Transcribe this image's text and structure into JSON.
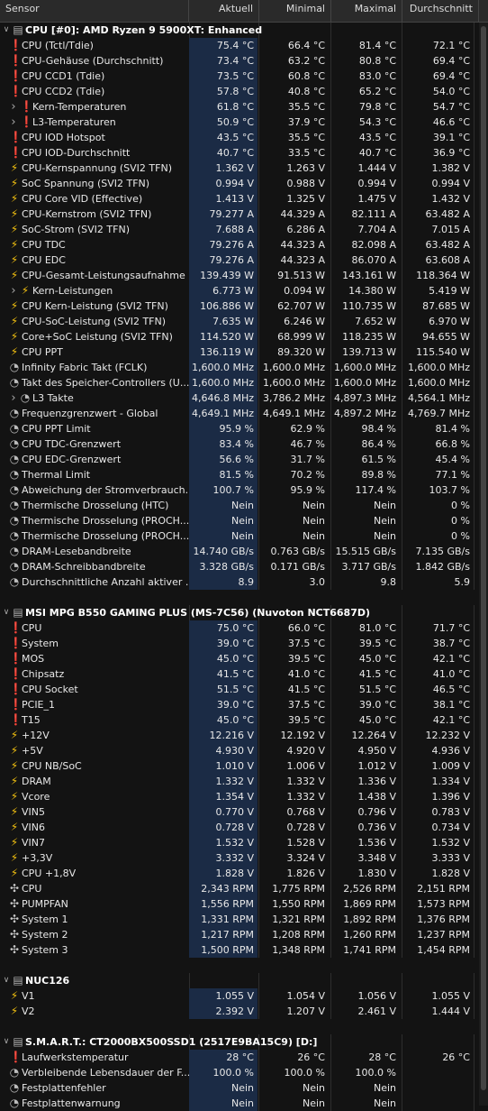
{
  "header": {
    "sensor": "Sensor",
    "current": "Aktuell",
    "min": "Minimal",
    "max": "Maximal",
    "avg": "Durchschnitt"
  },
  "rows": [
    {
      "kind": "group",
      "level": 0,
      "toggle": "collapse",
      "icon": "chip",
      "name": "CPU [#0]: AMD Ryzen 9 5900XT: Enhanced"
    },
    {
      "kind": "sensor",
      "level": 1,
      "icon": "thermometer",
      "name": "CPU (Tctl/Tdie)",
      "v": [
        "75.4 °C",
        "66.4 °C",
        "81.4 °C",
        "72.1 °C"
      ]
    },
    {
      "kind": "sensor",
      "level": 1,
      "icon": "thermometer",
      "name": "CPU-Gehäuse (Durchschnitt)",
      "v": [
        "73.4 °C",
        "63.2 °C",
        "80.8 °C",
        "69.4 °C"
      ]
    },
    {
      "kind": "sensor",
      "level": 1,
      "icon": "thermometer",
      "name": "CPU CCD1 (Tdie)",
      "v": [
        "73.5 °C",
        "60.8 °C",
        "83.0 °C",
        "69.4 °C"
      ]
    },
    {
      "kind": "sensor",
      "level": 1,
      "icon": "thermometer",
      "name": "CPU CCD2 (Tdie)",
      "v": [
        "57.8 °C",
        "40.8 °C",
        "65.2 °C",
        "54.0 °C"
      ]
    },
    {
      "kind": "sensor",
      "level": 1,
      "toggle": "expand",
      "icon": "thermometer",
      "name": "Kern-Temperaturen",
      "v": [
        "61.8 °C",
        "35.5 °C",
        "79.8 °C",
        "54.7 °C"
      ]
    },
    {
      "kind": "sensor",
      "level": 1,
      "toggle": "expand",
      "icon": "thermometer",
      "name": "L3-Temperaturen",
      "v": [
        "50.9 °C",
        "37.9 °C",
        "54.3 °C",
        "46.6 °C"
      ]
    },
    {
      "kind": "sensor",
      "level": 1,
      "icon": "thermometer",
      "name": "CPU IOD Hotspot",
      "v": [
        "43.5 °C",
        "35.5 °C",
        "43.5 °C",
        "39.1 °C"
      ]
    },
    {
      "kind": "sensor",
      "level": 1,
      "icon": "thermometer",
      "name": "CPU IOD-Durchschnitt",
      "v": [
        "40.7 °C",
        "33.5 °C",
        "40.7 °C",
        "36.9 °C"
      ]
    },
    {
      "kind": "sensor",
      "level": 1,
      "icon": "bolt",
      "name": "CPU-Kernspannung (SVI2 TFN)",
      "v": [
        "1.362 V",
        "1.263 V",
        "1.444 V",
        "1.382 V"
      ]
    },
    {
      "kind": "sensor",
      "level": 1,
      "icon": "bolt",
      "name": "SoC Spannung (SVI2 TFN)",
      "v": [
        "0.994 V",
        "0.988 V",
        "0.994 V",
        "0.994 V"
      ]
    },
    {
      "kind": "sensor",
      "level": 1,
      "icon": "bolt",
      "name": "CPU Core VID (Effective)",
      "v": [
        "1.413 V",
        "1.325 V",
        "1.475 V",
        "1.432 V"
      ]
    },
    {
      "kind": "sensor",
      "level": 1,
      "icon": "bolt",
      "name": "CPU-Kernstrom (SVI2 TFN)",
      "v": [
        "79.277 A",
        "44.329 A",
        "82.111 A",
        "63.482 A"
      ]
    },
    {
      "kind": "sensor",
      "level": 1,
      "icon": "bolt",
      "name": "SoC-Strom (SVI2 TFN)",
      "v": [
        "7.688 A",
        "6.286 A",
        "7.704 A",
        "7.015 A"
      ]
    },
    {
      "kind": "sensor",
      "level": 1,
      "icon": "bolt",
      "name": "CPU TDC",
      "v": [
        "79.276 A",
        "44.323 A",
        "82.098 A",
        "63.482 A"
      ]
    },
    {
      "kind": "sensor",
      "level": 1,
      "icon": "bolt",
      "name": "CPU EDC",
      "v": [
        "79.276 A",
        "44.323 A",
        "86.070 A",
        "63.608 A"
      ]
    },
    {
      "kind": "sensor",
      "level": 1,
      "icon": "bolt",
      "name": "CPU-Gesamt-Leistungsaufnahme",
      "v": [
        "139.439 W",
        "91.513 W",
        "143.161 W",
        "118.364 W"
      ]
    },
    {
      "kind": "sensor",
      "level": 1,
      "toggle": "expand",
      "icon": "bolt",
      "name": "Kern-Leistungen",
      "v": [
        "6.773 W",
        "0.094 W",
        "14.380 W",
        "5.419 W"
      ]
    },
    {
      "kind": "sensor",
      "level": 1,
      "icon": "bolt",
      "name": "CPU Kern-Leistung (SVI2 TFN)",
      "v": [
        "106.886 W",
        "62.707 W",
        "110.735 W",
        "87.685 W"
      ]
    },
    {
      "kind": "sensor",
      "level": 1,
      "icon": "bolt",
      "name": "CPU-SoC-Leistung (SVI2 TFN)",
      "v": [
        "7.635 W",
        "6.246 W",
        "7.652 W",
        "6.970 W"
      ]
    },
    {
      "kind": "sensor",
      "level": 1,
      "icon": "bolt",
      "name": "Core+SoC Leistung (SVI2 TFN)",
      "v": [
        "114.520 W",
        "68.999 W",
        "118.235 W",
        "94.655 W"
      ]
    },
    {
      "kind": "sensor",
      "level": 1,
      "icon": "bolt",
      "name": "CPU PPT",
      "v": [
        "136.119 W",
        "89.320 W",
        "139.713 W",
        "115.540 W"
      ]
    },
    {
      "kind": "sensor",
      "level": 1,
      "icon": "clock",
      "name": "Infinity Fabric Takt (FCLK)",
      "v": [
        "1,600.0 MHz",
        "1,600.0 MHz",
        "1,600.0 MHz",
        "1,600.0 MHz"
      ]
    },
    {
      "kind": "sensor",
      "level": 1,
      "icon": "clock",
      "name": "Takt des Speicher-Controllers (U...",
      "v": [
        "1,600.0 MHz",
        "1,600.0 MHz",
        "1,600.0 MHz",
        "1,600.0 MHz"
      ]
    },
    {
      "kind": "sensor",
      "level": 1,
      "toggle": "expand",
      "icon": "clock",
      "name": "L3 Takte",
      "v": [
        "4,646.8 MHz",
        "3,786.2 MHz",
        "4,897.3 MHz",
        "4,564.1 MHz"
      ]
    },
    {
      "kind": "sensor",
      "level": 1,
      "icon": "clock",
      "name": "Frequenzgrenzwert - Global",
      "v": [
        "4,649.1 MHz",
        "4,649.1 MHz",
        "4,897.2 MHz",
        "4,769.7 MHz"
      ]
    },
    {
      "kind": "sensor",
      "level": 1,
      "icon": "clock",
      "name": "CPU PPT Limit",
      "v": [
        "95.9 %",
        "62.9 %",
        "98.4 %",
        "81.4 %"
      ]
    },
    {
      "kind": "sensor",
      "level": 1,
      "icon": "clock",
      "name": "CPU TDC-Grenzwert",
      "v": [
        "83.4 %",
        "46.7 %",
        "86.4 %",
        "66.8 %"
      ]
    },
    {
      "kind": "sensor",
      "level": 1,
      "icon": "clock",
      "name": "CPU EDC-Grenzwert",
      "v": [
        "56.6 %",
        "31.7 %",
        "61.5 %",
        "45.4 %"
      ]
    },
    {
      "kind": "sensor",
      "level": 1,
      "icon": "clock",
      "name": "Thermal Limit",
      "v": [
        "81.5 %",
        "70.2 %",
        "89.8 %",
        "77.1 %"
      ]
    },
    {
      "kind": "sensor",
      "level": 1,
      "icon": "clock",
      "name": "Abweichung der Stromverbrauch...",
      "v": [
        "100.7 %",
        "95.9 %",
        "117.4 %",
        "103.7 %"
      ]
    },
    {
      "kind": "sensor",
      "level": 1,
      "icon": "clock",
      "name": "Thermische Drosselung (HTC)",
      "v": [
        "Nein",
        "Nein",
        "Nein",
        "0 %"
      ]
    },
    {
      "kind": "sensor",
      "level": 1,
      "icon": "clock",
      "name": "Thermische Drosselung (PROCH...",
      "v": [
        "Nein",
        "Nein",
        "Nein",
        "0 %"
      ]
    },
    {
      "kind": "sensor",
      "level": 1,
      "icon": "clock",
      "name": "Thermische Drosselung (PROCH...",
      "v": [
        "Nein",
        "Nein",
        "Nein",
        "0 %"
      ]
    },
    {
      "kind": "sensor",
      "level": 1,
      "icon": "clock",
      "name": "DRAM-Lesebandbreite",
      "v": [
        "14.740 GB/s",
        "0.763 GB/s",
        "15.515 GB/s",
        "7.135 GB/s"
      ]
    },
    {
      "kind": "sensor",
      "level": 1,
      "icon": "clock",
      "name": "DRAM-Schreibbandbreite",
      "v": [
        "3.328 GB/s",
        "0.171 GB/s",
        "3.717 GB/s",
        "1.842 GB/s"
      ]
    },
    {
      "kind": "sensor",
      "level": 1,
      "icon": "clock",
      "name": "Durchschnittliche Anzahl aktiver ...",
      "v": [
        "8.9",
        "3.0",
        "9.8",
        "5.9"
      ]
    },
    {
      "kind": "spacer"
    },
    {
      "kind": "group",
      "level": 0,
      "toggle": "collapse",
      "icon": "chip",
      "name": "MSI MPG B550 GAMING PLUS (MS-7C56) (Nuvoton NCT6687D)"
    },
    {
      "kind": "sensor",
      "level": 1,
      "icon": "thermometer",
      "name": "CPU",
      "v": [
        "75.0 °C",
        "66.0 °C",
        "81.0 °C",
        "71.7 °C"
      ]
    },
    {
      "kind": "sensor",
      "level": 1,
      "icon": "thermometer",
      "name": "System",
      "v": [
        "39.0 °C",
        "37.5 °C",
        "39.5 °C",
        "38.7 °C"
      ]
    },
    {
      "kind": "sensor",
      "level": 1,
      "icon": "thermometer",
      "name": "MOS",
      "v": [
        "45.0 °C",
        "39.5 °C",
        "45.0 °C",
        "42.1 °C"
      ]
    },
    {
      "kind": "sensor",
      "level": 1,
      "icon": "thermometer",
      "name": "Chipsatz",
      "v": [
        "41.5 °C",
        "41.0 °C",
        "41.5 °C",
        "41.0 °C"
      ]
    },
    {
      "kind": "sensor",
      "level": 1,
      "icon": "thermometer",
      "name": "CPU Socket",
      "v": [
        "51.5 °C",
        "41.5 °C",
        "51.5 °C",
        "46.5 °C"
      ]
    },
    {
      "kind": "sensor",
      "level": 1,
      "icon": "thermometer",
      "name": "PCIE_1",
      "v": [
        "39.0 °C",
        "37.5 °C",
        "39.0 °C",
        "38.1 °C"
      ]
    },
    {
      "kind": "sensor",
      "level": 1,
      "icon": "thermometer",
      "name": "T15",
      "v": [
        "45.0 °C",
        "39.5 °C",
        "45.0 °C",
        "42.1 °C"
      ]
    },
    {
      "kind": "sensor",
      "level": 1,
      "icon": "bolt",
      "name": "+12V",
      "v": [
        "12.216 V",
        "12.192 V",
        "12.264 V",
        "12.232 V"
      ]
    },
    {
      "kind": "sensor",
      "level": 1,
      "icon": "bolt",
      "name": "+5V",
      "v": [
        "4.930 V",
        "4.920 V",
        "4.950 V",
        "4.936 V"
      ]
    },
    {
      "kind": "sensor",
      "level": 1,
      "icon": "bolt",
      "name": "CPU NB/SoC",
      "v": [
        "1.010 V",
        "1.006 V",
        "1.012 V",
        "1.009 V"
      ]
    },
    {
      "kind": "sensor",
      "level": 1,
      "icon": "bolt",
      "name": "DRAM",
      "v": [
        "1.332 V",
        "1.332 V",
        "1.336 V",
        "1.334 V"
      ]
    },
    {
      "kind": "sensor",
      "level": 1,
      "icon": "bolt",
      "name": "Vcore",
      "v": [
        "1.354 V",
        "1.332 V",
        "1.438 V",
        "1.396 V"
      ]
    },
    {
      "kind": "sensor",
      "level": 1,
      "icon": "bolt",
      "name": "VIN5",
      "v": [
        "0.770 V",
        "0.768 V",
        "0.796 V",
        "0.783 V"
      ]
    },
    {
      "kind": "sensor",
      "level": 1,
      "icon": "bolt",
      "name": "VIN6",
      "v": [
        "0.728 V",
        "0.728 V",
        "0.736 V",
        "0.734 V"
      ]
    },
    {
      "kind": "sensor",
      "level": 1,
      "icon": "bolt",
      "name": "VIN7",
      "v": [
        "1.532 V",
        "1.528 V",
        "1.536 V",
        "1.532 V"
      ]
    },
    {
      "kind": "sensor",
      "level": 1,
      "icon": "bolt",
      "name": "+3,3V",
      "v": [
        "3.332 V",
        "3.324 V",
        "3.348 V",
        "3.333 V"
      ]
    },
    {
      "kind": "sensor",
      "level": 1,
      "icon": "bolt",
      "name": "CPU +1,8V",
      "v": [
        "1.828 V",
        "1.826 V",
        "1.830 V",
        "1.828 V"
      ]
    },
    {
      "kind": "sensor",
      "level": 1,
      "icon": "fan",
      "name": "CPU",
      "v": [
        "2,343 RPM",
        "1,775 RPM",
        "2,526 RPM",
        "2,151 RPM"
      ]
    },
    {
      "kind": "sensor",
      "level": 1,
      "icon": "fan",
      "name": "PUMPFAN",
      "v": [
        "1,556 RPM",
        "1,550 RPM",
        "1,869 RPM",
        "1,573 RPM"
      ]
    },
    {
      "kind": "sensor",
      "level": 1,
      "icon": "fan",
      "name": "System 1",
      "v": [
        "1,331 RPM",
        "1,321 RPM",
        "1,892 RPM",
        "1,376 RPM"
      ]
    },
    {
      "kind": "sensor",
      "level": 1,
      "icon": "fan",
      "name": "System 2",
      "v": [
        "1,217 RPM",
        "1,208 RPM",
        "1,260 RPM",
        "1,237 RPM"
      ]
    },
    {
      "kind": "sensor",
      "level": 1,
      "icon": "fan",
      "name": "System 3",
      "v": [
        "1,500 RPM",
        "1,348 RPM",
        "1,741 RPM",
        "1,454 RPM"
      ]
    },
    {
      "kind": "spacer"
    },
    {
      "kind": "group",
      "level": 0,
      "toggle": "collapse",
      "icon": "chip",
      "name": "NUC126"
    },
    {
      "kind": "sensor",
      "level": 1,
      "icon": "bolt",
      "name": "V1",
      "v": [
        "1.055 V",
        "1.054 V",
        "1.056 V",
        "1.055 V"
      ]
    },
    {
      "kind": "sensor",
      "level": 1,
      "icon": "bolt",
      "name": "V2",
      "v": [
        "2.392 V",
        "1.207 V",
        "2.461 V",
        "1.444 V"
      ]
    },
    {
      "kind": "spacer"
    },
    {
      "kind": "group",
      "level": 0,
      "toggle": "collapse",
      "icon": "chip",
      "name": "S.M.A.R.T.: CT2000BX500SSD1 (2517E9BA15C9) [D:]"
    },
    {
      "kind": "sensor",
      "level": 1,
      "icon": "thermometer",
      "name": "Laufwerkstemperatur",
      "v": [
        "28 °C",
        "26 °C",
        "28 °C",
        "26 °C"
      ]
    },
    {
      "kind": "sensor",
      "level": 1,
      "icon": "clock",
      "name": "Verbleibende Lebensdauer der F...",
      "v": [
        "100.0 %",
        "100.0 %",
        "100.0 %",
        ""
      ]
    },
    {
      "kind": "sensor",
      "level": 1,
      "icon": "clock",
      "name": "Festplattenfehler",
      "v": [
        "Nein",
        "Nein",
        "Nein",
        ""
      ]
    },
    {
      "kind": "sensor",
      "level": 1,
      "icon": "clock",
      "name": "Festplattenwarnung",
      "v": [
        "Nein",
        "Nein",
        "Nein",
        ""
      ]
    }
  ]
}
